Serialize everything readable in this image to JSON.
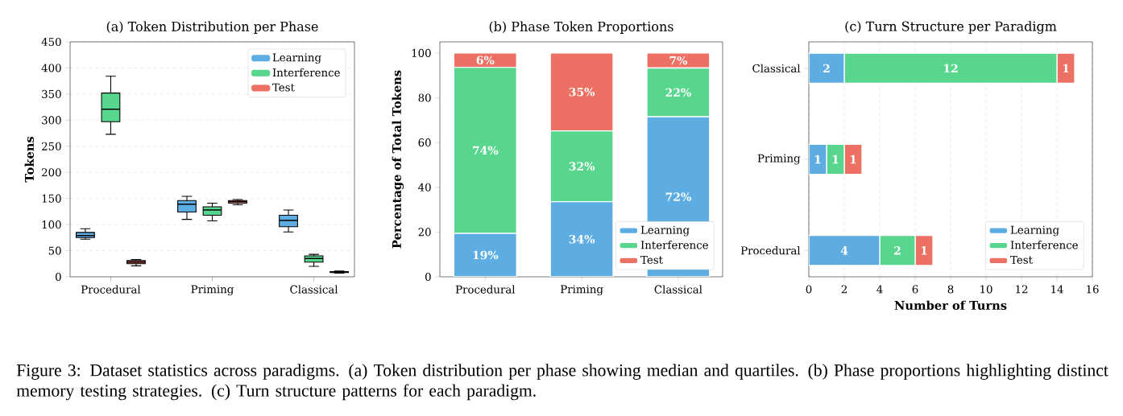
{
  "chart_data": [
    {
      "type": "box",
      "title": "(a) Token Distribution per Phase",
      "ylabel": "Tokens",
      "categories": [
        "Procedural",
        "Priming",
        "Classical"
      ],
      "ylim": [
        0,
        450
      ],
      "yticks": [
        0,
        50,
        100,
        150,
        200,
        250,
        300,
        350,
        400,
        450
      ],
      "grid": "y",
      "legend": "top right",
      "series": [
        {
          "name": "Learning",
          "color": "#5dade2",
          "boxes": [
            {
              "low": 72,
              "q1": 75,
              "median": 79,
              "q3": 85,
              "high": 92
            },
            {
              "low": 110,
              "q1": 124,
              "median": 139,
              "q3": 146,
              "high": 154
            },
            {
              "low": 86,
              "q1": 96,
              "median": 108,
              "q3": 118,
              "high": 128
            }
          ]
        },
        {
          "name": "Interference",
          "color": "#58d68d",
          "boxes": [
            {
              "low": 273,
              "q1": 297,
              "median": 321,
              "q3": 352,
              "high": 384
            },
            {
              "low": 107,
              "q1": 118,
              "median": 128,
              "q3": 134,
              "high": 141
            },
            {
              "low": 20,
              "q1": 28,
              "median": 35,
              "q3": 40,
              "high": 43
            }
          ]
        },
        {
          "name": "Test",
          "color": "#ec7063",
          "boxes": [
            {
              "low": 21,
              "q1": 25,
              "median": 28,
              "q3": 31,
              "high": 33
            },
            {
              "low": 138,
              "q1": 141,
              "median": 144,
              "q3": 146,
              "high": 148
            },
            {
              "low": 7,
              "q1": 8,
              "median": 9,
              "q3": 10,
              "high": 11
            }
          ]
        }
      ],
      "annotations": [
        "Figure 3: Dataset statistics across paradigms. (a) Token distribution per phase showing median and quartiles. (b) Phase proportions highlighting distinct memory testing strategies. (c) Turn structure patterns for each paradigm."
      ]
    },
    {
      "type": "bar",
      "stacked": true,
      "title": "(b) Phase Token Proportions",
      "ylabel": "Percentage of Total Tokens",
      "categories": [
        "Procedural",
        "Priming",
        "Classical"
      ],
      "ylim": [
        0,
        105
      ],
      "yticks": [
        0,
        20,
        40,
        60,
        80,
        100
      ],
      "legend": "bottom right",
      "series": [
        {
          "name": "Learning",
          "color": "#5dade2",
          "values": [
            19.4,
            33.6,
            71.5
          ],
          "value_labels": [
            "19%",
            "34%",
            "72%"
          ]
        },
        {
          "name": "Interference",
          "color": "#58d68d",
          "values": [
            74.2,
            31.6,
            21.8
          ],
          "value_labels": [
            "74%",
            "32%",
            "22%"
          ]
        },
        {
          "name": "Test",
          "color": "#ec7063",
          "values": [
            6.4,
            34.8,
            6.7
          ],
          "value_labels": [
            "6%",
            "35%",
            "7%"
          ]
        }
      ]
    },
    {
      "type": "bar",
      "stacked": true,
      "orientation": "horizontal",
      "title": "(c) Turn Structure per Paradigm",
      "xlabel": "Number of Turns",
      "categories": [
        "Classical",
        "Priming",
        "Procedural"
      ],
      "xlim": [
        0,
        16
      ],
      "xticks": [
        0,
        2,
        4,
        6,
        8,
        10,
        12,
        14,
        16
      ],
      "grid": "x",
      "legend": "bottom right",
      "data_labels": true,
      "series": [
        {
          "name": "Learning",
          "color": "#5dade2",
          "values": [
            2,
            1,
            4
          ]
        },
        {
          "name": "Interference",
          "color": "#58d68d",
          "values": [
            12,
            1,
            2
          ]
        },
        {
          "name": "Test",
          "color": "#ec7063",
          "values": [
            1,
            1,
            1
          ]
        }
      ]
    }
  ]
}
